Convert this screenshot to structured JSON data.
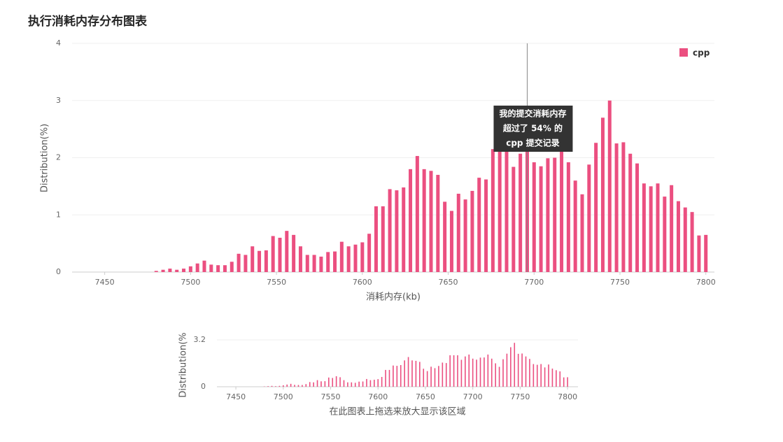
{
  "chart_data": [
    {
      "type": "bar",
      "title": "执行消耗内存分布图表",
      "x_label": "消耗内存(kb)",
      "y_label": "Distribution(%)",
      "x": [
        7480,
        7484,
        7488,
        7492,
        7496,
        7500,
        7504,
        7508,
        7512,
        7516,
        7520,
        7524,
        7528,
        7532,
        7536,
        7540,
        7544,
        7548,
        7552,
        7556,
        7560,
        7564,
        7568,
        7572,
        7576,
        7580,
        7584,
        7588,
        7592,
        7596,
        7600,
        7604,
        7608,
        7612,
        7616,
        7620,
        7624,
        7628,
        7632,
        7636,
        7640,
        7644,
        7648,
        7652,
        7656,
        7660,
        7664,
        7668,
        7672,
        7676,
        7680,
        7684,
        7688,
        7692,
        7696,
        7700,
        7704,
        7708,
        7712,
        7716,
        7720,
        7724,
        7728,
        7732,
        7736,
        7740,
        7744,
        7748,
        7752,
        7756,
        7760,
        7764,
        7768,
        7772,
        7776,
        7780,
        7784,
        7788,
        7792,
        7796,
        7800
      ],
      "series": [
        {
          "name": "cpp",
          "color": "#eb4f80",
          "values": [
            0.02,
            0.04,
            0.06,
            0.04,
            0.06,
            0.1,
            0.15,
            0.2,
            0.13,
            0.12,
            0.12,
            0.18,
            0.32,
            0.3,
            0.45,
            0.37,
            0.38,
            0.63,
            0.6,
            0.72,
            0.65,
            0.45,
            0.3,
            0.3,
            0.27,
            0.35,
            0.36,
            0.53,
            0.45,
            0.48,
            0.52,
            0.67,
            1.15,
            1.15,
            1.45,
            1.43,
            1.48,
            1.8,
            2.03,
            1.8,
            1.77,
            1.7,
            1.23,
            1.07,
            1.37,
            1.27,
            1.42,
            1.65,
            1.62,
            2.15,
            2.15,
            2.15,
            1.84,
            2.07,
            2.2,
            1.92,
            1.85,
            1.99,
            2.0,
            2.2,
            1.92,
            1.6,
            1.36,
            1.88,
            2.26,
            2.7,
            3.0,
            2.25,
            2.27,
            2.07,
            1.9,
            1.55,
            1.5,
            1.55,
            1.32,
            1.52,
            1.24,
            1.13,
            1.05,
            0.64,
            0.65
          ]
        }
      ],
      "xlim": [
        7431,
        7805
      ],
      "xticks": [
        7450,
        7500,
        7550,
        7600,
        7650,
        7700,
        7750,
        7800
      ],
      "ylim": [
        0,
        4
      ],
      "yticks": [
        0,
        1,
        2,
        3,
        4
      ],
      "grid": true,
      "legend": "top-right",
      "tooltip": {
        "x": 7696,
        "lines": [
          "我的提交消耗内存",
          "超过了 54% 的",
          "cpp 提交记录"
        ]
      }
    },
    {
      "type": "bar",
      "x_label": "在此图表上拖选来放大显示该区域",
      "y_label": "Distribution(%",
      "xlim": [
        7430,
        7811
      ],
      "xticks": [
        7450,
        7500,
        7550,
        7600,
        7650,
        7700,
        7750,
        7800
      ],
      "ylim": [
        0,
        3.2
      ],
      "yticks": [
        0,
        3.2
      ],
      "grid": true
    }
  ]
}
